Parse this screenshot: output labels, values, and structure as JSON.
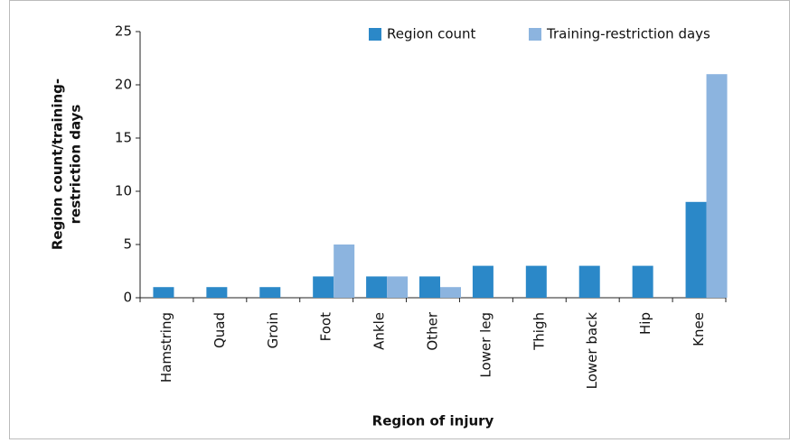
{
  "chart_data": {
    "type": "bar",
    "x_label": "Region of injury",
    "y_label_lines": [
      "Region count/training-",
      "restriction days"
    ],
    "categories": [
      "Hamstring",
      "Quad",
      "Groin",
      "Foot",
      "Ankle",
      "Other",
      "Lower leg",
      "Thigh",
      "Lower back",
      "Hip",
      "Knee"
    ],
    "series": [
      {
        "name": "Region count",
        "color": "#2b88c8",
        "values": [
          1,
          1,
          1,
          2,
          2,
          2,
          3,
          3,
          3,
          3,
          9
        ]
      },
      {
        "name": "Training-restriction days",
        "color": "#8cb4df",
        "values": [
          0,
          0,
          0,
          5,
          2,
          1,
          0,
          0,
          0,
          0,
          21
        ]
      }
    ],
    "ylim": [
      0,
      25
    ],
    "yticks": [
      0,
      5,
      10,
      15,
      20,
      25
    ],
    "grid": false,
    "legend": "top"
  }
}
